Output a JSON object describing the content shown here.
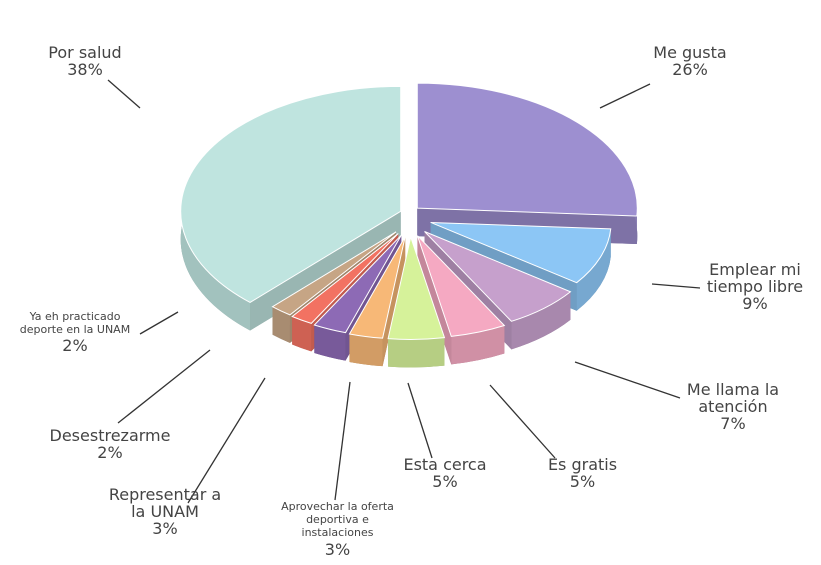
{
  "chart_data": {
    "type": "pie",
    "categories": [
      "Me gusta",
      "Emplear mi tiempo libre",
      "Me llama la atención",
      "Es gratis",
      "Esta cerca",
      "Aprovechar la oferta deportiva e instalaciones",
      "Representar a la UNAM",
      "Desestrezarme",
      "Ya eh practicado deporte en la UNAM",
      "Por salud"
    ],
    "values": [
      26,
      9,
      7,
      5,
      5,
      3,
      3,
      2,
      2,
      38
    ],
    "value_labels": [
      "26%",
      "9%",
      "7%",
      "5%",
      "5%",
      "3%",
      "3%",
      "2%",
      "2%",
      "38%"
    ],
    "colors": [
      "#9d8fd0",
      "#8cc6f5",
      "#c6a0cc",
      "#f5a9c2",
      "#d6f29a",
      "#f7b877",
      "#8d6ab5",
      "#f27262",
      "#c6a585",
      "#bfe4df"
    ]
  }
}
